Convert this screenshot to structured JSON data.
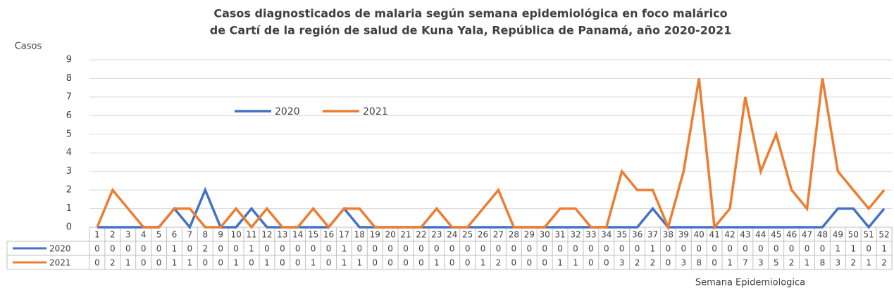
{
  "chart_data": {
    "type": "line",
    "title": [
      "Casos diagnosticados de malaria según semana epidemiológica en foco malárico",
      "de Cartí de la región de salud de Kuna Yala, República de Panamá, año 2020-2021"
    ],
    "y_label": "Casos",
    "x_label": "Semana Epidemiologica",
    "categories": [
      "1",
      "2",
      "3",
      "4",
      "5",
      "6",
      "7",
      "8",
      "9",
      "10",
      "11",
      "12",
      "13",
      "14",
      "15",
      "16",
      "17",
      "18",
      "19",
      "20",
      "21",
      "22",
      "23",
      "24",
      "25",
      "26",
      "27",
      "28",
      "29",
      "30",
      "31",
      "32",
      "33",
      "34",
      "35",
      "36",
      "37",
      "38",
      "39",
      "40",
      "41",
      "42",
      "43",
      "44",
      "45",
      "46",
      "47",
      "48",
      "49",
      "50",
      "51",
      "52"
    ],
    "series": [
      {
        "name": "2020",
        "color": "#4472c4",
        "values": [
          0,
          0,
          0,
          0,
          0,
          1,
          0,
          2,
          0,
          0,
          1,
          0,
          0,
          0,
          0,
          0,
          1,
          0,
          0,
          0,
          0,
          0,
          0,
          0,
          0,
          0,
          0,
          0,
          0,
          0,
          0,
          0,
          0,
          0,
          0,
          0,
          1,
          0,
          0,
          0,
          0,
          0,
          0,
          0,
          0,
          0,
          0,
          0,
          1,
          1,
          0,
          1
        ]
      },
      {
        "name": "2021",
        "color": "#ed7d31",
        "values": [
          0,
          2,
          1,
          0,
          0,
          1,
          1,
          0,
          0,
          1,
          0,
          1,
          0,
          0,
          1,
          0,
          1,
          1,
          0,
          0,
          0,
          0,
          1,
          0,
          0,
          1,
          2,
          0,
          0,
          0,
          1,
          1,
          0,
          0,
          3,
          2,
          2,
          0,
          3,
          8,
          0,
          1,
          7,
          3,
          5,
          2,
          1,
          8,
          3,
          2,
          1,
          2
        ]
      }
    ],
    "ylim": [
      0,
      9
    ],
    "yticks": [
      0,
      1,
      2,
      3,
      4,
      5,
      6,
      7,
      8,
      9
    ],
    "grid": true,
    "data_table": true
  }
}
